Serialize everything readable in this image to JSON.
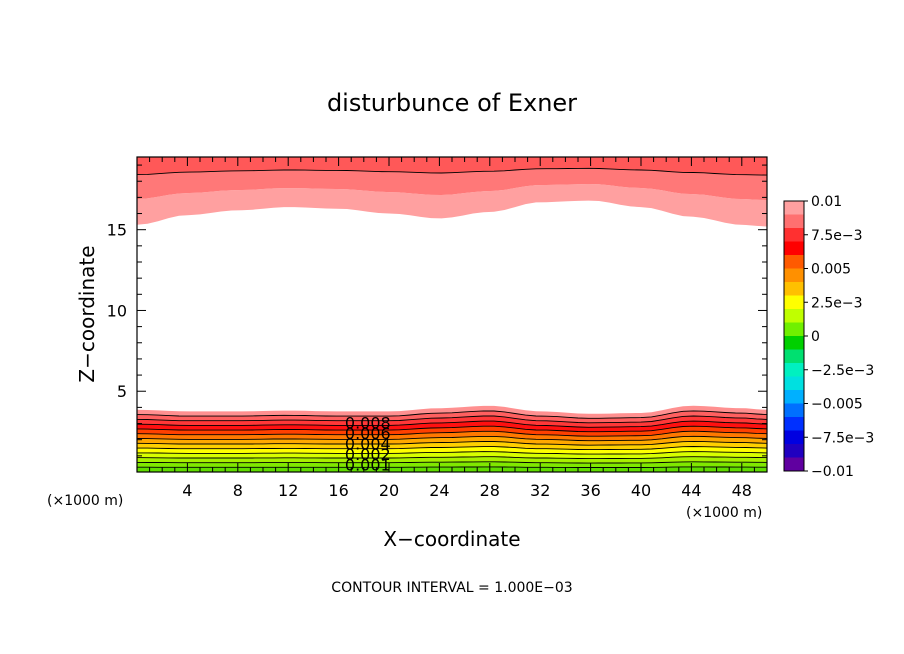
{
  "chart_data": {
    "type": "contour",
    "title": "disturbunce of Exner",
    "xlabel": "X−coordinate",
    "ylabel": "Z−coordinate",
    "xunit_left": "(×1000 m)",
    "xunit_right": "(×1000 m)",
    "footer": "CONTOUR INTERVAL = 1.000E−03",
    "xlim": [
      0,
      50
    ],
    "ylim": [
      0,
      19.5
    ],
    "xticks": [
      4,
      8,
      12,
      16,
      20,
      24,
      28,
      32,
      36,
      40,
      44,
      48
    ],
    "xtick_labels": [
      "4",
      "8",
      "12",
      "16",
      "20",
      "24",
      "28",
      "32",
      "36",
      "40",
      "44",
      "48"
    ],
    "yticks": [
      5,
      10,
      15
    ],
    "ytick_labels": [
      "5",
      "10",
      "15"
    ],
    "contour_interval": 0.001,
    "contour_labels": [
      {
        "text": "0.008",
        "x": 16.5,
        "y": 2.7
      },
      {
        "text": "0.006",
        "x": 16.5,
        "y": 2.05
      },
      {
        "text": "0.004",
        "x": 16.5,
        "y": 1.4
      },
      {
        "text": "0.002",
        "x": 16.5,
        "y": 0.75
      },
      {
        "text": "0.001",
        "x": 16.5,
        "y": 0.1
      }
    ],
    "bottom_band": {
      "top_profile_x": [
        0,
        4,
        8,
        12,
        16,
        20,
        24,
        28,
        32,
        36,
        40,
        44,
        48,
        50
      ],
      "top_profile_z": [
        3.85,
        3.75,
        3.75,
        3.8,
        3.75,
        3.75,
        3.95,
        4.1,
        3.75,
        3.6,
        3.65,
        4.1,
        3.95,
        3.85
      ]
    },
    "top_band": {
      "bottom_profile_x": [
        0,
        4,
        8,
        12,
        16,
        20,
        24,
        28,
        32,
        36,
        40,
        44,
        48,
        50
      ],
      "bottom_profile_z": [
        15.3,
        15.9,
        16.2,
        16.4,
        16.3,
        16.0,
        15.7,
        16.1,
        16.7,
        16.8,
        16.4,
        15.8,
        15.3,
        15.2
      ]
    },
    "colorbar": {
      "labels": [
        "0.01",
        "7.5e−3",
        "0.005",
        "2.5e−3",
        "0",
        "−2.5e−3",
        "−0.005",
        "−7.5e−3",
        "−0.01"
      ],
      "colors_top_to_bottom": [
        "#ffa0a0",
        "#ff7070",
        "#ff3030",
        "#ff0000",
        "#ff5a00",
        "#ff9000",
        "#ffc000",
        "#ffff00",
        "#c0ff00",
        "#70f000",
        "#00d000",
        "#00e070",
        "#00f0c0",
        "#00e0e0",
        "#00b0ff",
        "#0070ff",
        "#0030ff",
        "#0000e0",
        "#2000c0",
        "#6000a0"
      ]
    }
  }
}
